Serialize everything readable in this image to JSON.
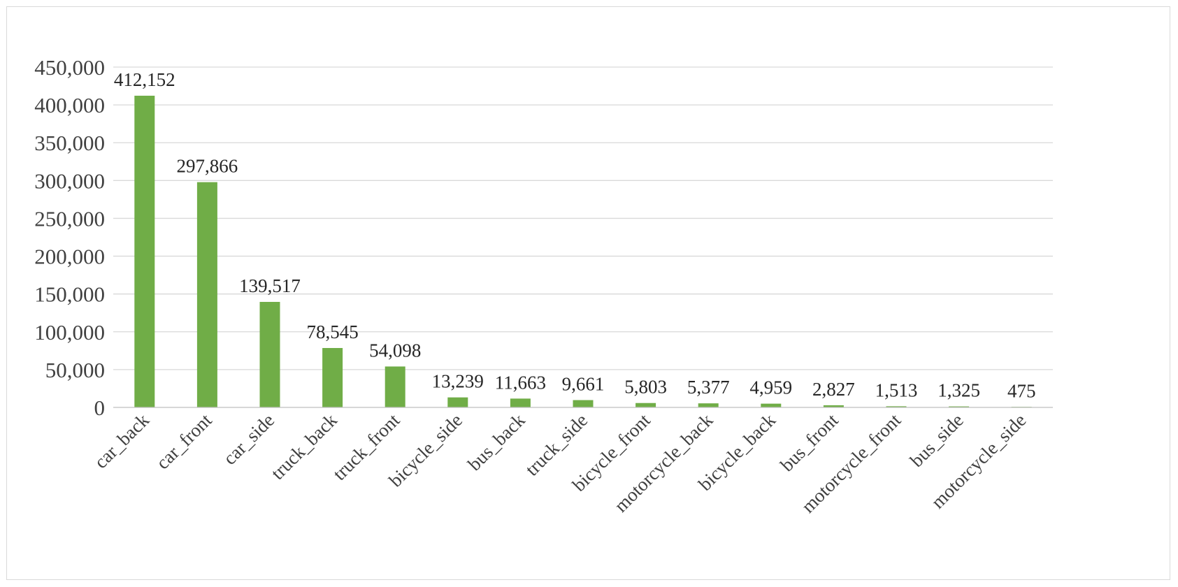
{
  "chart_data": {
    "type": "bar",
    "title": "",
    "xlabel": "",
    "ylabel": "",
    "categories": [
      "car_back",
      "car_front",
      "car_side",
      "truck_back",
      "truck_front",
      "bicycle_side",
      "bus_back",
      "truck_side",
      "bicycle_front",
      "motorcycle_back",
      "bicycle_back",
      "bus_front",
      "motorcycle_front",
      "bus_side",
      "motorcycle_side"
    ],
    "values": [
      412152,
      297866,
      139517,
      78545,
      54098,
      13239,
      11663,
      9661,
      5803,
      5377,
      4959,
      2827,
      1513,
      1325,
      475
    ],
    "data_labels": [
      "412,152",
      "297,866",
      "139,517",
      "78,545",
      "54,098",
      "13,239",
      "11,663",
      "9,661",
      "5,803",
      "5,377",
      "4,959",
      "2,827",
      "1,513",
      "1,325",
      "475"
    ],
    "ylim": [
      0,
      450000
    ],
    "yticks": [
      0,
      50000,
      100000,
      150000,
      200000,
      250000,
      300000,
      350000,
      400000,
      450000
    ],
    "ytick_labels": [
      "0",
      "50,000",
      "100,000",
      "150,000",
      "200,000",
      "250,000",
      "300,000",
      "350,000",
      "400,000",
      "450,000"
    ],
    "grid": true,
    "legend": "none",
    "bar_color": "#70ad47"
  }
}
